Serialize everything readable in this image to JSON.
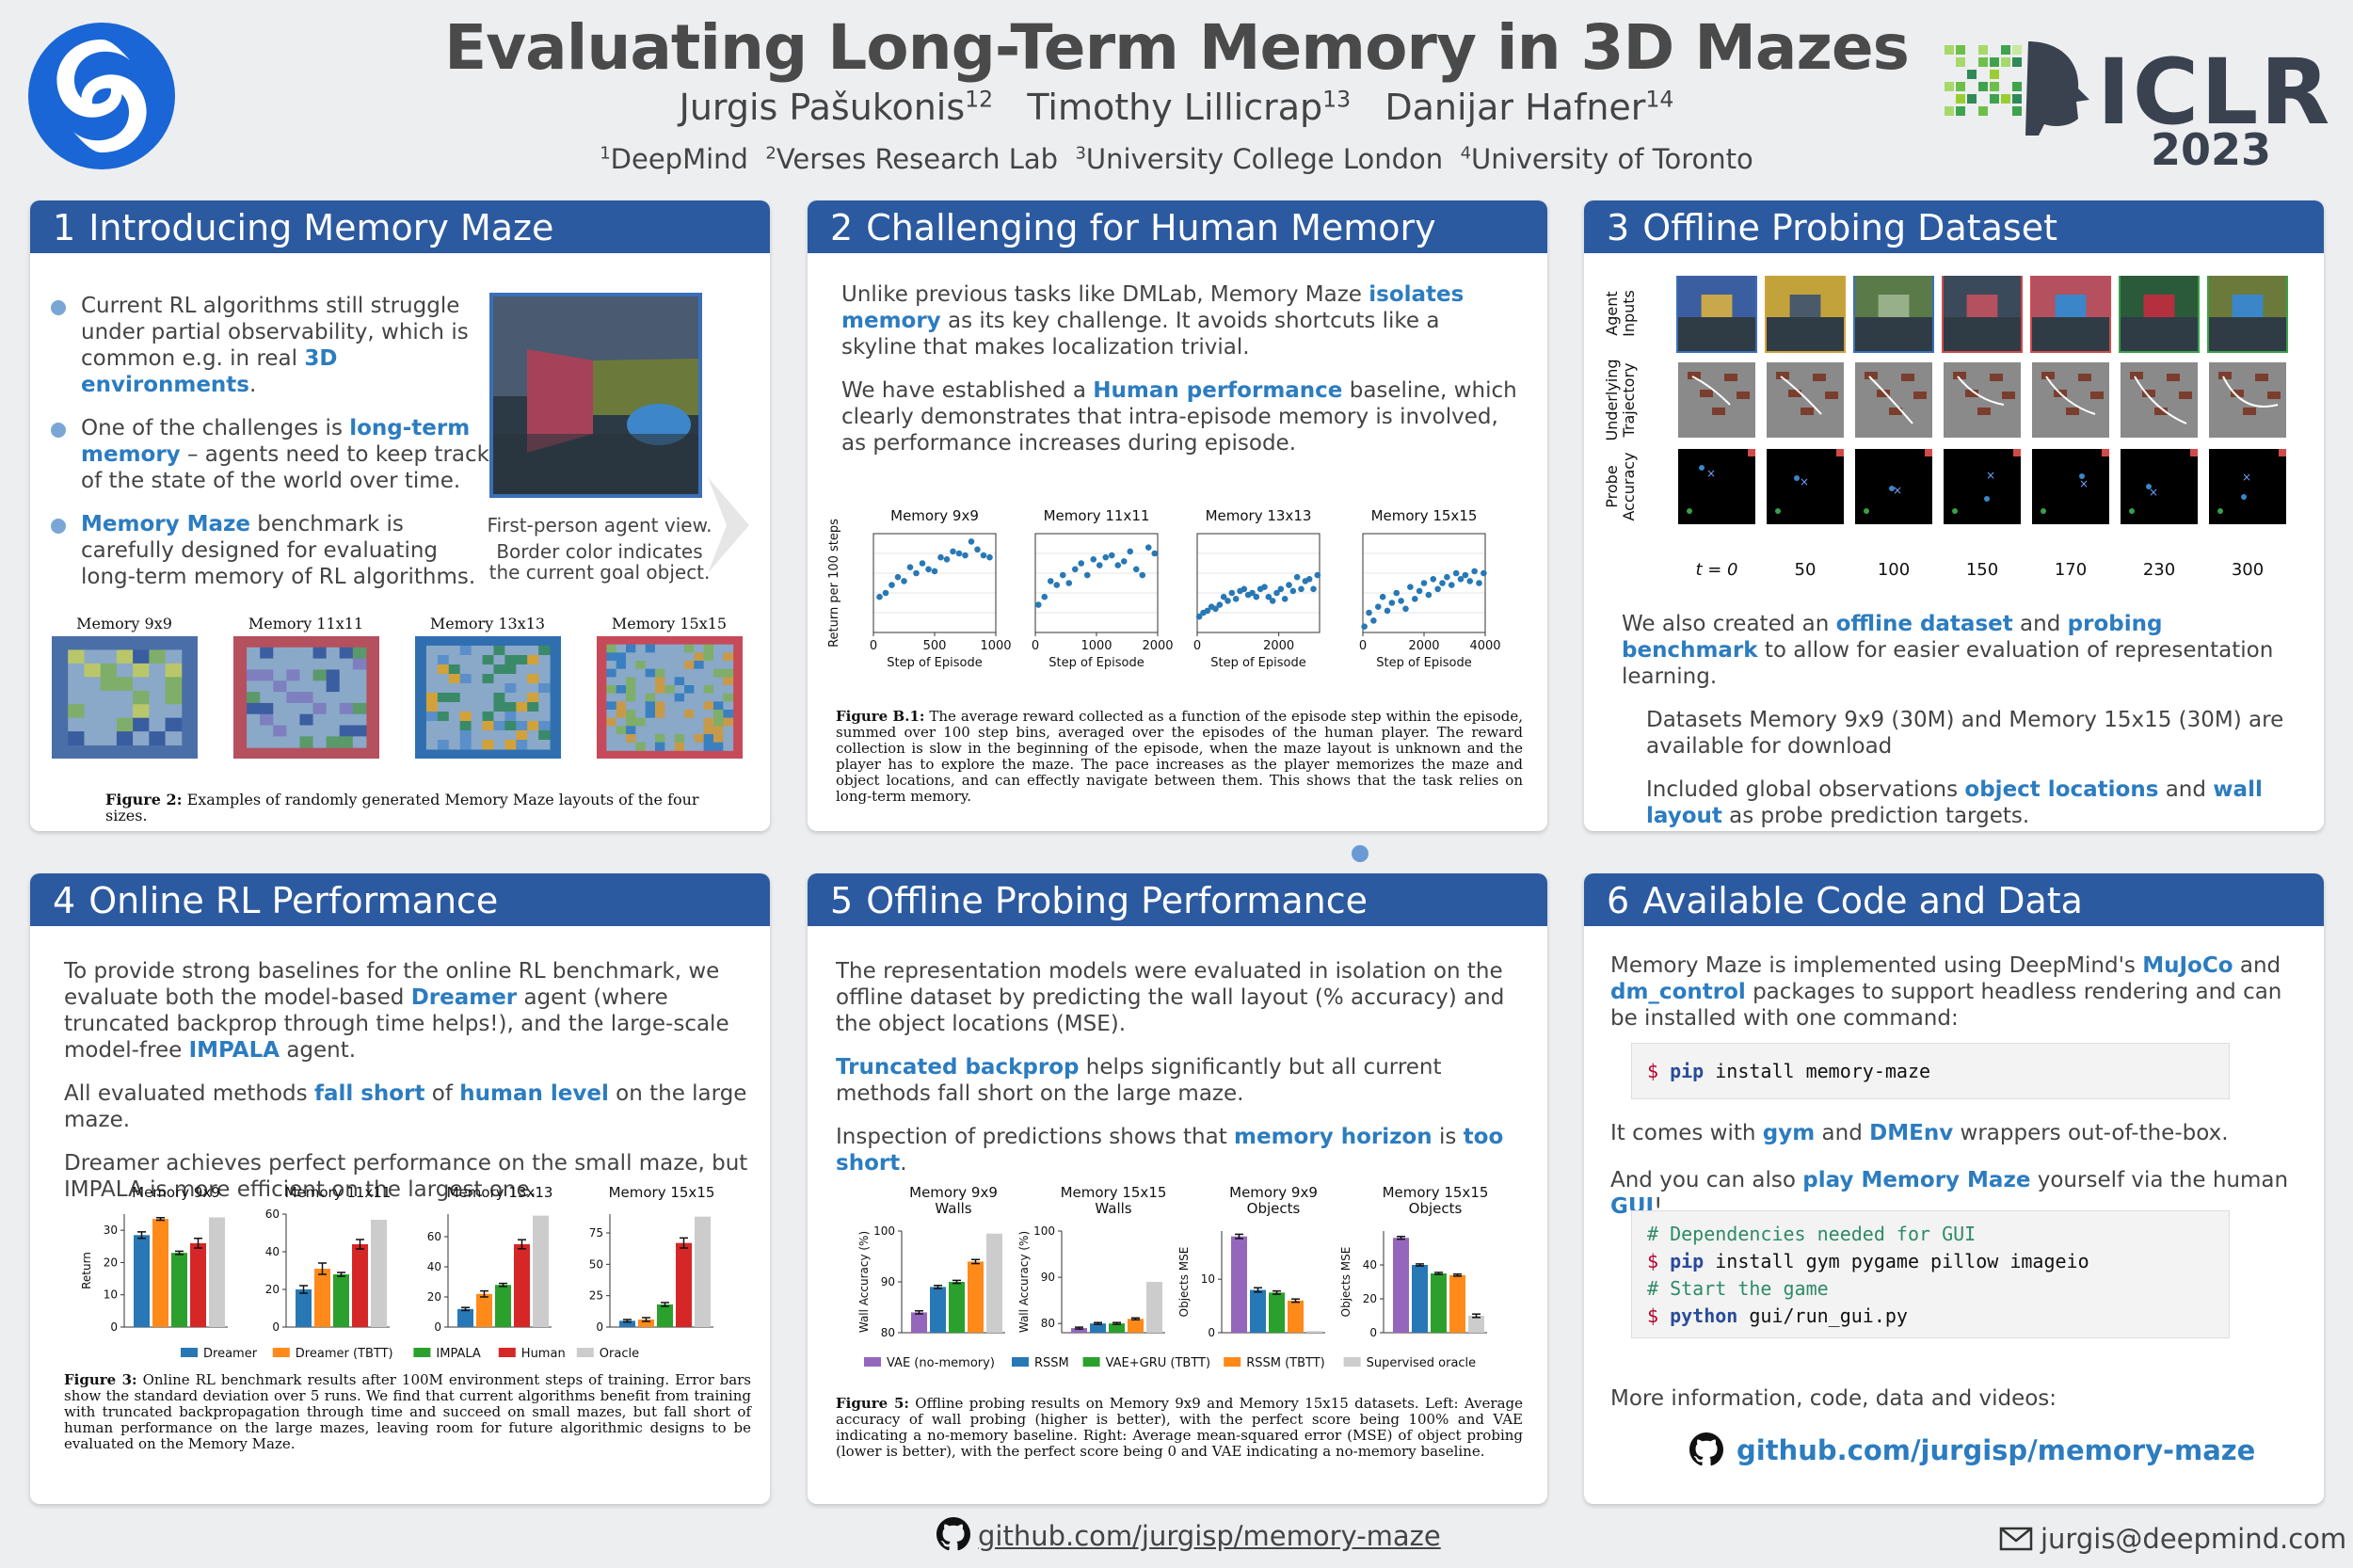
{
  "header": {
    "title": "Evaluating Long-Term Memory in 3D Mazes",
    "authors": [
      {
        "name": "Jurgis Pašukonis",
        "sup": "12"
      },
      {
        "name": "Timothy Lillicrap",
        "sup": "13"
      },
      {
        "name": "Danijar Hafner",
        "sup": "14"
      }
    ],
    "affiliations": [
      {
        "sup": "1",
        "name": "DeepMind"
      },
      {
        "sup": "2",
        "name": "Verses Research Lab"
      },
      {
        "sup": "3",
        "name": "University College London"
      },
      {
        "sup": "4",
        "name": "University of Toronto"
      }
    ],
    "conference": "ICLR",
    "year": "2023"
  },
  "colors": {
    "panel_header": "#2c5aa0",
    "highlight": "#2c7cc0",
    "background": "#edeef0"
  },
  "panel1": {
    "number": "1",
    "title": "Introducing Memory Maze",
    "bullets": [
      {
        "parts": [
          "Current RL algorithms still struggle under partial observability, which is common e.g. in real ",
          {
            "hl": "3D environments"
          },
          "."
        ]
      },
      {
        "parts": [
          "One of the challenges is ",
          {
            "hl": "long-term memory"
          },
          " – agents need to keep track of the state of the world over time."
        ]
      },
      {
        "parts": [
          {
            "hl": "Memory Maze"
          },
          " benchmark is carefully designed for evaluating long-term memory of RL algorithms."
        ]
      }
    ],
    "agent_view_caption_1": "First-person agent view.",
    "agent_view_caption_2": "Border color indicates",
    "agent_view_caption_3": "the current goal object.",
    "maze_titles": [
      "Memory 9x9",
      "Memory 11x11",
      "Memory 13x13",
      "Memory 15x15"
    ],
    "fig_label": "Figure 2:",
    "fig_caption": "Examples of randomly generated Memory Maze layouts of the four sizes."
  },
  "panel2": {
    "number": "2",
    "title": "Challenging for Human Memory",
    "para1": [
      "Unlike previous tasks like DMLab, Memory Maze ",
      {
        "hl": "isolates memory"
      },
      " as its key challenge. It avoids shortcuts like a skyline that makes localization trivial."
    ],
    "para2": [
      "We have established a ",
      {
        "hl": "Human performance"
      },
      " baseline, which clearly demonstrates that intra-episode memory is involved, as performance increases during episode."
    ],
    "fig_label": "Figure B.1:",
    "fig_caption": "The average reward collected as a function of the episode step within the episode, summed over 100 step bins, averaged over the episodes of the human player. The reward collection is slow in the beginning of the episode, when the maze layout is unknown and the player has to explore the maze. The pace increases as the player memorizes the maze and object locations, and can effectly navigate between them. This shows that the task relies on long-term memory."
  },
  "panel3": {
    "number": "3",
    "title": "Offline Probing Dataset",
    "row_labels": [
      [
        "Agent",
        "Inputs"
      ],
      [
        "Underlying",
        "Trajectory"
      ],
      [
        "Probe",
        "Accuracy"
      ]
    ],
    "t_label": "t = 0",
    "t_values": [
      "50",
      "100",
      "150",
      "170",
      "230",
      "300"
    ],
    "para1": [
      "We also created an ",
      {
        "hl": "offline dataset"
      },
      " and ",
      {
        "hl": "probing benchmark"
      },
      " to allow for easier evaluation of representation learning."
    ],
    "sub1": "Datasets Memory 9x9 (30M) and Memory 15x15 (30M) are available for download",
    "sub2": [
      "Included global observations ",
      {
        "hl": "object locations"
      },
      " and ",
      {
        "hl": "wall layout"
      },
      " as probe prediction targets."
    ]
  },
  "panel4": {
    "number": "4",
    "title": "Online RL Performance",
    "para1": [
      "To provide strong baselines for the online RL benchmark, we evaluate both the model-based ",
      {
        "hl": "Dreamer"
      },
      " agent (where truncated backprop through time helps!), and the large-scale model-free ",
      {
        "hl": "IMPALA"
      },
      " agent."
    ],
    "para2": [
      "All evaluated methods ",
      {
        "hl": "fall short"
      },
      " of ",
      {
        "hl": "human level"
      },
      " on the large maze."
    ],
    "para3": [
      "Dreamer achieves perfect performance on the small maze, but IMPALA is more efficient on the largest one."
    ],
    "fig_label": "Figure 3:",
    "fig_caption": "Online RL benchmark results after 100M environment steps of training. Error bars show the standard deviation over 5 runs. We find that current algorithms benefit from training with truncated backpropagation through time and succeed on small mazes, but fall short of human performance on the large mazes, leaving room for future algorithmic designs to be evaluated on the Memory Maze."
  },
  "panel5": {
    "number": "5",
    "title": "Offline Probing Performance",
    "para1": [
      "The representation models were evaluated in isolation on the offline dataset by predicting the wall layout (% accuracy) and the object locations (MSE)."
    ],
    "para2": [
      {
        "hl": "Truncated backprop"
      },
      " helps significantly but all current methods fall short on the large maze."
    ],
    "para3": [
      "Inspection of predictions shows that ",
      {
        "hl": "memory horizon"
      },
      " is ",
      {
        "hl": "too short"
      },
      "."
    ],
    "fig_label": "Figure 5:",
    "fig_caption": "Offline probing results on Memory 9x9 and Memory 15x15 datasets. Left: Average accuracy of wall probing (higher is better), with the perfect score being 100% and VAE indicating a no-memory baseline. Right: Average mean-squared error (MSE) of object probing (lower is better), with the perfect score being 0 and VAE indicating a no-memory baseline."
  },
  "panel6": {
    "number": "6",
    "title": "Available Code and Data",
    "para1": [
      "Memory Maze is implemented using DeepMind's ",
      {
        "hl": "MuJoCo"
      },
      " and ",
      {
        "hl": "dm_control"
      },
      " packages to support headless rendering and can be installed with one command:"
    ],
    "install_cmd": "install memory-maze",
    "para2": [
      "It comes with ",
      {
        "hl": "gym"
      },
      " and ",
      {
        "hl": "DMEnv"
      },
      " wrappers out-of-the-box."
    ],
    "para3": [
      "And you can also ",
      {
        "hl": "play Memory Maze"
      },
      " yourself via the human ",
      {
        "hl": "GUI"
      },
      "!"
    ],
    "code_comment1": "# Dependencies needed for GUI",
    "code_line1": "install gym pygame pillow imageio",
    "code_comment2": "# Start the game",
    "code_line2": "gui/run_gui.py",
    "prompt": "$",
    "kw_pip": "pip",
    "kw_python": "python",
    "more_info": "More information, code, data and videos:",
    "repo": "github.com/jurgisp/memory-maze"
  },
  "footer": {
    "repo": "github.com/jurgisp/memory-maze",
    "email": "jurgis@deepmind.com"
  },
  "chart_data": [
    {
      "type": "scatter",
      "id": "human_9x9",
      "title": "Memory 9x9",
      "xlabel": "Step of Episode",
      "ylabel": "Return per 100 steps",
      "xlim": [
        0,
        1000
      ],
      "ylim": [
        0,
        5
      ],
      "x": [
        50,
        100,
        150,
        200,
        250,
        300,
        350,
        400,
        450,
        500,
        550,
        600,
        650,
        700,
        750,
        800,
        850,
        900,
        950
      ],
      "y": [
        1.8,
        2.0,
        2.4,
        2.8,
        2.6,
        3.3,
        3.0,
        3.5,
        3.2,
        3.1,
        3.8,
        3.7,
        4.1,
        4.0,
        3.9,
        4.6,
        4.2,
        3.9,
        3.8
      ]
    },
    {
      "type": "scatter",
      "id": "human_11x11",
      "title": "Memory 11x11",
      "xlabel": "Step of Episode",
      "ylabel": "",
      "xlim": [
        0,
        2000
      ],
      "ylim": [
        0,
        5
      ],
      "x": [
        50,
        150,
        250,
        350,
        450,
        550,
        650,
        750,
        850,
        950,
        1050,
        1150,
        1250,
        1350,
        1450,
        1550,
        1650,
        1750,
        1850,
        1950
      ],
      "y": [
        1.4,
        1.8,
        2.6,
        2.4,
        2.9,
        2.5,
        3.2,
        3.5,
        2.9,
        3.7,
        3.4,
        3.8,
        3.9,
        3.4,
        3.6,
        4.1,
        3.2,
        2.9,
        4.3,
        4.0
      ]
    },
    {
      "type": "scatter",
      "id": "human_13x13",
      "title": "Memory 13x13",
      "xlabel": "Step of Episode",
      "ylabel": "",
      "xlim": [
        0,
        3000
      ],
      "ylim": [
        0,
        5
      ],
      "x": [
        50,
        150,
        250,
        350,
        450,
        550,
        650,
        750,
        850,
        950,
        1050,
        1150,
        1250,
        1350,
        1450,
        1550,
        1650,
        1750,
        1850,
        1950,
        2050,
        2150,
        2250,
        2350,
        2450,
        2550,
        2650,
        2750,
        2850,
        2950
      ],
      "y": [
        0.8,
        1.0,
        1.1,
        1.3,
        1.2,
        1.4,
        1.8,
        1.6,
        2.0,
        1.7,
        2.1,
        2.2,
        1.9,
        2.0,
        1.8,
        2.2,
        2.3,
        1.8,
        1.6,
        2.0,
        2.2,
        1.7,
        2.4,
        2.1,
        2.8,
        2.2,
        2.6,
        2.7,
        2.2,
        2.9
      ]
    },
    {
      "type": "scatter",
      "id": "human_15x15",
      "title": "Memory 15x15",
      "xlabel": "Step of Episode",
      "ylabel": "",
      "xlim": [
        0,
        4000
      ],
      "ylim": [
        0,
        5
      ],
      "x": [
        50,
        200,
        350,
        500,
        650,
        800,
        950,
        1100,
        1250,
        1400,
        1550,
        1700,
        1850,
        2000,
        2150,
        2300,
        2450,
        2600,
        2750,
        2900,
        3050,
        3200,
        3350,
        3500,
        3650,
        3800,
        3950
      ],
      "y": [
        0.3,
        1.0,
        0.6,
        1.3,
        1.8,
        1.1,
        1.5,
        2.0,
        1.6,
        1.2,
        2.3,
        1.7,
        2.1,
        2.5,
        1.9,
        2.7,
        2.2,
        2.5,
        2.8,
        2.4,
        3.0,
        2.7,
        2.9,
        2.6,
        3.1,
        2.5,
        3.0
      ]
    },
    {
      "type": "bar",
      "id": "online_rl",
      "ylabel": "Return",
      "legend": [
        "Dreamer",
        "Dreamer (TBTT)",
        "IMPALA",
        "Human",
        "Oracle"
      ],
      "series_colors": [
        "#2878b5",
        "#ff8a1a",
        "#2ca02c",
        "#d62728",
        "#cccccc"
      ],
      "panels": [
        {
          "title": "Memory 9x9",
          "ylim": [
            0,
            35
          ],
          "yticks": [
            0,
            10,
            20,
            30
          ],
          "values": [
            28.5,
            33.5,
            23,
            26,
            34
          ],
          "errors": [
            1,
            0.4,
            0.5,
            1.5,
            0
          ]
        },
        {
          "title": "Memory 11x11",
          "ylim": [
            0,
            60
          ],
          "yticks": [
            0,
            20,
            40,
            60
          ],
          "values": [
            20,
            31,
            28,
            44,
            57
          ],
          "errors": [
            2,
            3,
            1,
            2.5,
            0
          ]
        },
        {
          "title": "Memory 13x13",
          "ylim": [
            0,
            75
          ],
          "yticks": [
            0,
            20,
            40,
            60
          ],
          "values": [
            12,
            22,
            28,
            55,
            74
          ],
          "errors": [
            1,
            2,
            1,
            3,
            0
          ]
        },
        {
          "title": "Memory 15x15",
          "ylim": [
            0,
            90
          ],
          "yticks": [
            0,
            25,
            50,
            75
          ],
          "values": [
            5,
            6,
            18,
            67,
            88
          ],
          "errors": [
            1,
            1.5,
            1.5,
            4,
            0
          ]
        }
      ]
    },
    {
      "type": "bar",
      "id": "offline_probing",
      "legend": [
        "VAE (no-memory)",
        "RSSM",
        "VAE+GRU (TBTT)",
        "RSSM (TBTT)",
        "Supervised oracle"
      ],
      "series_colors": [
        "#9467bd",
        "#2878b5",
        "#2ca02c",
        "#ff8a1a",
        "#cccccc"
      ],
      "panels": [
        {
          "title": [
            "Memory 9x9",
            "Walls"
          ],
          "ylabel": "Wall Accuracy (%)",
          "ylim": [
            80,
            100
          ],
          "yticks": [
            80,
            90,
            100
          ],
          "values": [
            84,
            89,
            90,
            94,
            99.5
          ],
          "errors": [
            0.3,
            0.3,
            0.3,
            0.4,
            0
          ]
        },
        {
          "title": [
            "Memory 15x15",
            "Walls"
          ],
          "ylabel": "Wall Accuracy (%)",
          "ylim": [
            78,
            100
          ],
          "yticks": [
            80,
            90,
            100
          ],
          "values": [
            79,
            80,
            80,
            81,
            89
          ],
          "errors": [
            0.2,
            0.2,
            0.2,
            0.2,
            0
          ]
        },
        {
          "title": [
            "Memory 9x9",
            "Objects"
          ],
          "ylabel": "Objects MSE",
          "ylim": [
            0,
            19
          ],
          "yticks": [
            0,
            10
          ],
          "values": [
            18,
            8,
            7.5,
            6,
            0.3
          ],
          "errors": [
            0.4,
            0.4,
            0.3,
            0.3,
            0
          ]
        },
        {
          "title": [
            "Memory 15x15",
            "Objects"
          ],
          "ylabel": "Objects MSE",
          "ylim": [
            0,
            60
          ],
          "yticks": [
            0,
            20,
            40
          ],
          "values": [
            56,
            40,
            35,
            34,
            10
          ],
          "errors": [
            0.8,
            0.6,
            0.6,
            0.6,
            1
          ]
        }
      ]
    }
  ]
}
